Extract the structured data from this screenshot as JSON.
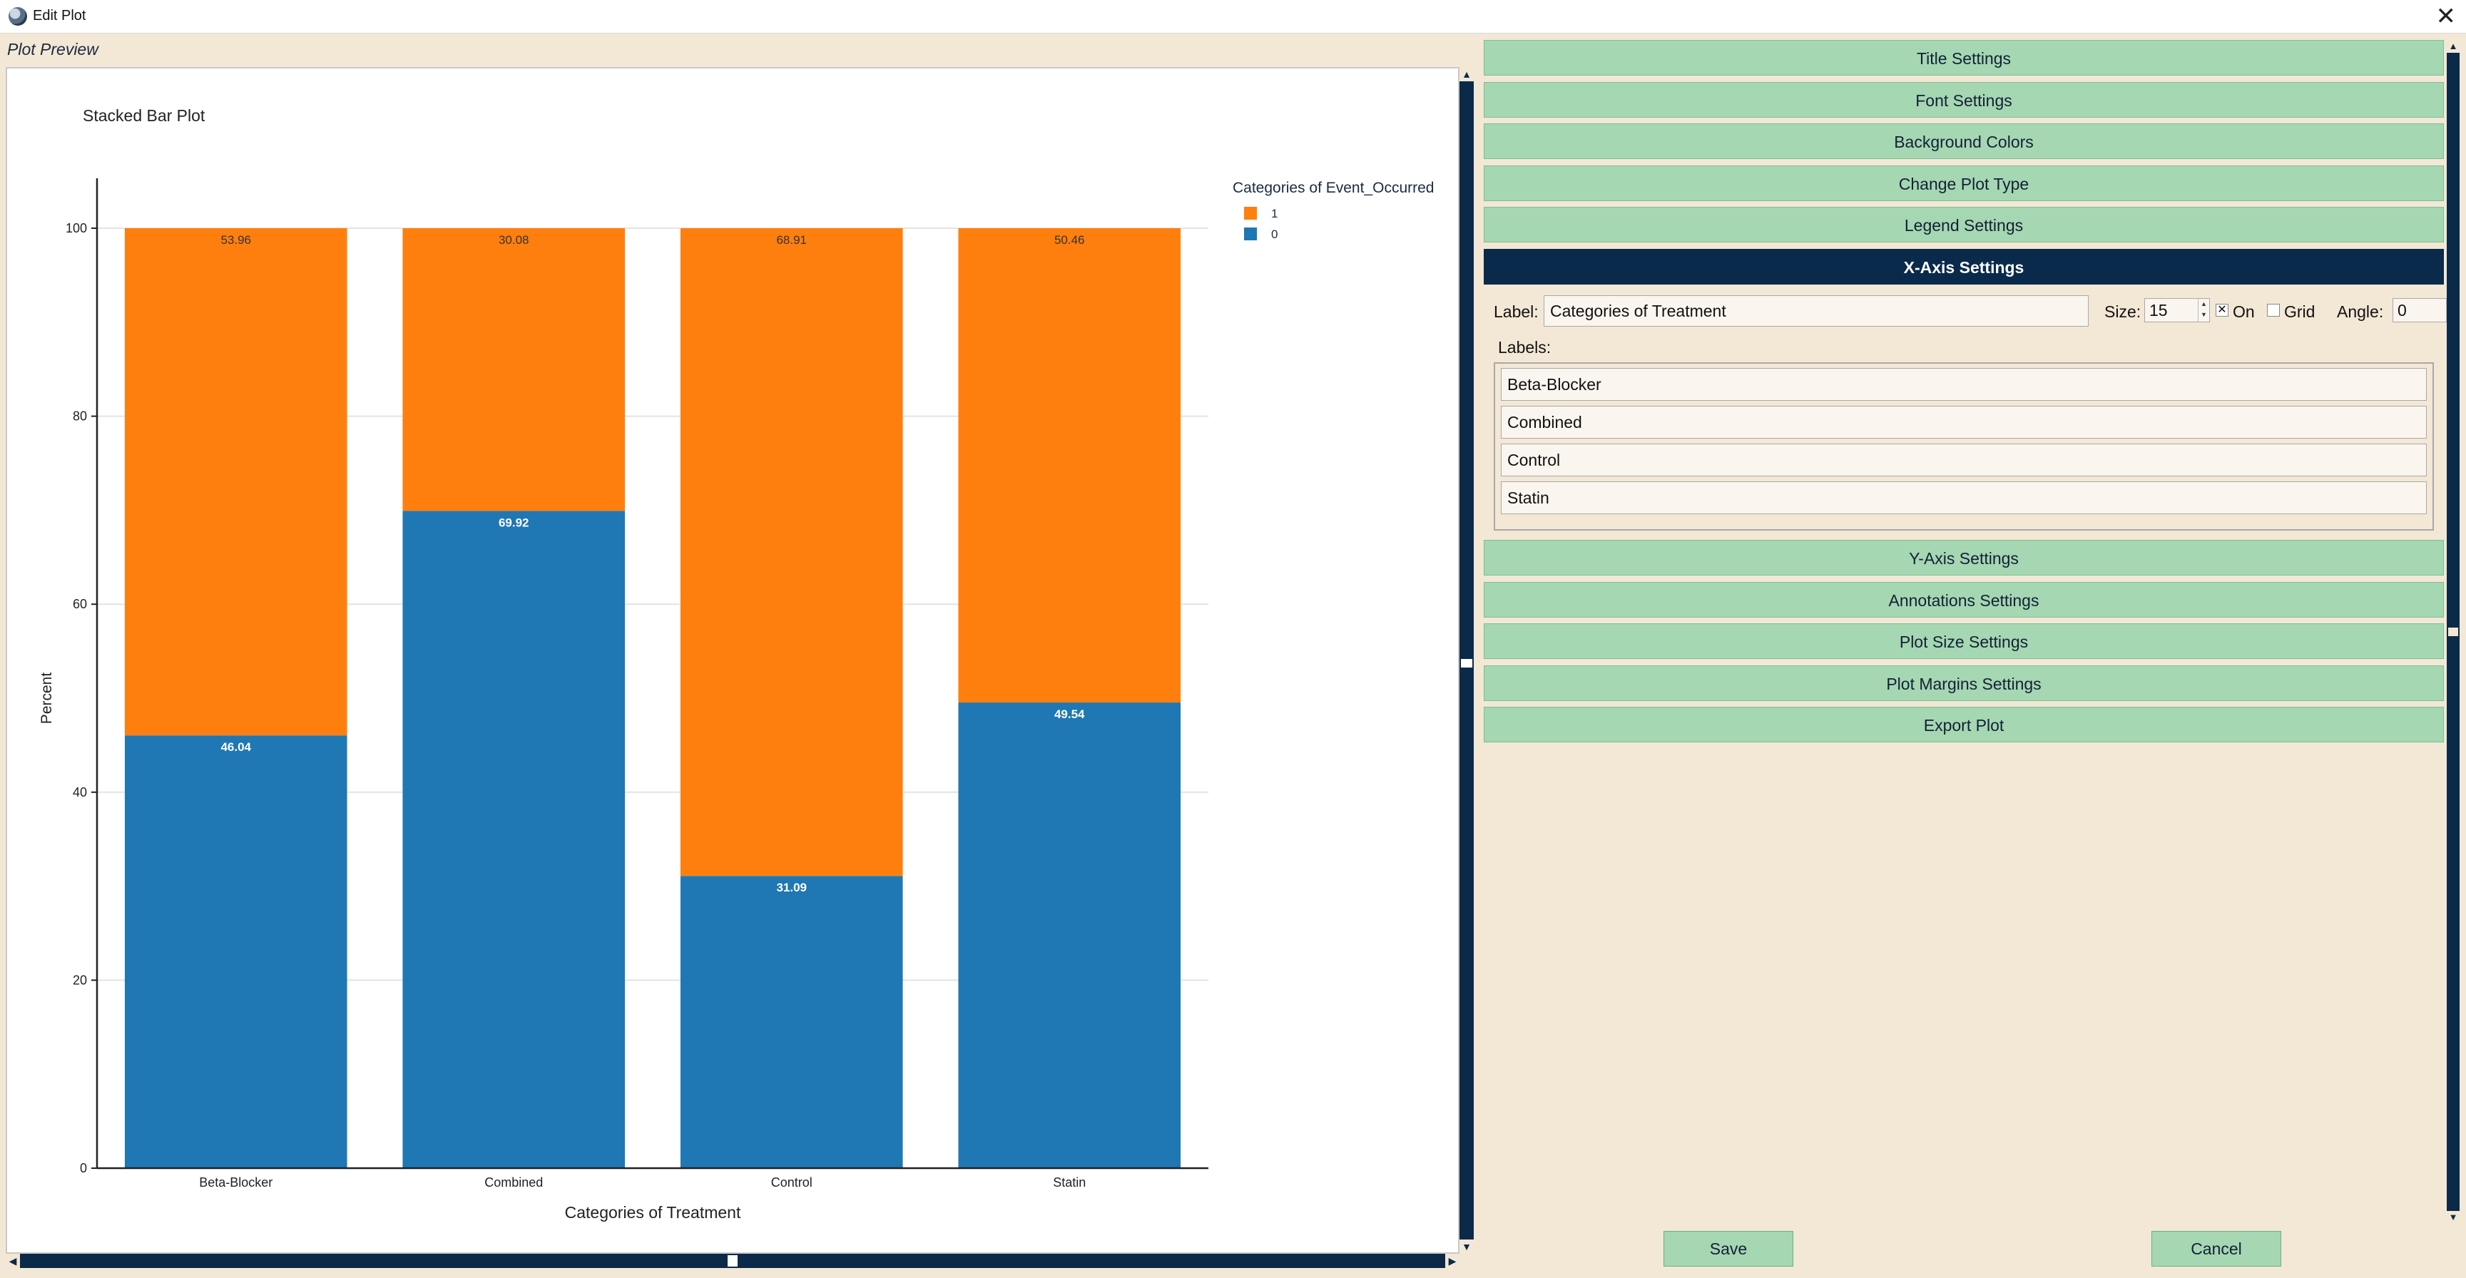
{
  "window": {
    "title": "Edit Plot",
    "close_icon": "close-icon"
  },
  "preview": {
    "label": "Plot Preview"
  },
  "chart_data": {
    "type": "bar",
    "stacked": true,
    "title": "Stacked Bar Plot",
    "xlabel": "Categories of Treatment",
    "ylabel": "Percent",
    "categories": [
      "Beta-Blocker",
      "Combined",
      "Control",
      "Statin"
    ],
    "ylim": [
      0,
      100
    ],
    "yticks": [
      0,
      20,
      40,
      60,
      80,
      100
    ],
    "grid": true,
    "legend_title": "Categories of  Event_Occurred",
    "legend_position": "top-right",
    "series": [
      {
        "name": "0",
        "color": "#1f77b4",
        "values": [
          46.04,
          69.92,
          31.09,
          49.54
        ]
      },
      {
        "name": "1",
        "color": "#ff7f0e",
        "values": [
          53.96,
          30.08,
          68.91,
          50.46
        ]
      }
    ]
  },
  "panel": {
    "sections_top": [
      "Title Settings",
      "Font Settings",
      "Background Colors",
      "Change Plot Type",
      "Legend Settings"
    ],
    "active_section": "X-Axis Settings",
    "sections_bottom": [
      "Y-Axis Settings",
      "Annotations Settings",
      "Plot Size Settings",
      "Plot Margins Settings",
      "Export Plot"
    ]
  },
  "xaxis": {
    "label_caption": "Label:",
    "label_value": "Categories of Treatment",
    "size_caption": "Size:",
    "size_value": "15",
    "on_caption": "On",
    "on_checked": true,
    "grid_caption": "Grid",
    "grid_checked": false,
    "angle_caption": "Angle:",
    "angle_value": "0",
    "labels_caption": "Labels:",
    "labels": [
      "Beta-Blocker",
      "Combined",
      "Control",
      "Statin"
    ]
  },
  "footer": {
    "save": "Save",
    "cancel": "Cancel"
  }
}
